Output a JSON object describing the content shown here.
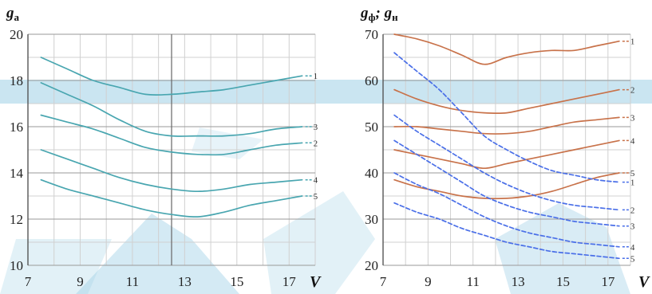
{
  "chart_data": [
    {
      "type": "line",
      "ylabel": {
        "main": "g",
        "sub": "a"
      },
      "xlabel": "V",
      "xlim": [
        7,
        18
      ],
      "ylim": [
        10,
        20
      ],
      "x_ticks": [
        "7",
        "9",
        "11",
        "13",
        "15",
        "17"
      ],
      "y_ticks": [
        "10",
        "12",
        "14",
        "16",
        "18",
        "20"
      ],
      "line_color": "#49a6b0",
      "series": [
        {
          "name": "1",
          "x": [
            7.5,
            8.5,
            9.5,
            10.5,
            11.5,
            12.5,
            13.5,
            14.5,
            15.5,
            16.5,
            17.5
          ],
          "y": [
            19.0,
            18.5,
            18.0,
            17.7,
            17.4,
            17.4,
            17.5,
            17.6,
            17.8,
            18.0,
            18.2
          ]
        },
        {
          "name": "2",
          "x": [
            7.5,
            8.5,
            9.5,
            10.5,
            11.5,
            12.5,
            13.5,
            14.5,
            15.5,
            16.5,
            17.5
          ],
          "y": [
            16.5,
            16.2,
            15.9,
            15.5,
            15.1,
            14.9,
            14.8,
            14.8,
            15.0,
            15.2,
            15.3
          ]
        },
        {
          "name": "3",
          "x": [
            7.5,
            8.5,
            9.5,
            10.5,
            11.5,
            12.5,
            13.5,
            14.5,
            15.5,
            16.5,
            17.5
          ],
          "y": [
            17.9,
            17.4,
            16.9,
            16.3,
            15.8,
            15.6,
            15.6,
            15.6,
            15.7,
            15.9,
            16.0
          ]
        },
        {
          "name": "4",
          "x": [
            7.5,
            8.5,
            9.5,
            10.5,
            11.5,
            12.5,
            13.5,
            14.5,
            15.5,
            16.5,
            17.5
          ],
          "y": [
            15.0,
            14.6,
            14.2,
            13.8,
            13.5,
            13.3,
            13.2,
            13.3,
            13.5,
            13.6,
            13.7
          ]
        },
        {
          "name": "5",
          "x": [
            7.5,
            8.5,
            9.5,
            10.5,
            11.5,
            12.5,
            13.5,
            14.5,
            15.5,
            16.5,
            17.5
          ],
          "y": [
            13.7,
            13.3,
            13.0,
            12.7,
            12.4,
            12.2,
            12.1,
            12.3,
            12.6,
            12.8,
            13.0
          ]
        }
      ]
    },
    {
      "type": "line",
      "ylabel": {
        "part1": "g",
        "sub1": "ф",
        "sep": "; ",
        "part2": "g",
        "sub2": "н"
      },
      "xlabel": "V",
      "xlim": [
        7,
        18
      ],
      "ylim": [
        20,
        70
      ],
      "x_ticks": [
        "7",
        "9",
        "11",
        "13",
        "15",
        "17"
      ],
      "y_ticks": [
        "20",
        "30",
        "40",
        "50",
        "60",
        "70"
      ],
      "solid_color": "#c8724a",
      "dashed_color": "#4a6fe8",
      "solid_series": [
        {
          "name": "1",
          "x": [
            7.5,
            8.5,
            9.5,
            10.5,
            11.5,
            12.5,
            13.5,
            14.5,
            15.5,
            16.5,
            17.5
          ],
          "y": [
            70,
            69,
            67.5,
            65.5,
            63.5,
            65,
            66,
            66.5,
            66.5,
            67.5,
            68.5
          ]
        },
        {
          "name": "2",
          "x": [
            7.5,
            8.5,
            9.5,
            10.5,
            11.5,
            12.5,
            13.5,
            14.5,
            15.5,
            16.5,
            17.5
          ],
          "y": [
            58,
            56,
            54.5,
            53.5,
            53,
            53,
            54,
            55,
            56,
            57,
            58
          ]
        },
        {
          "name": "3",
          "x": [
            7.5,
            8.5,
            9.5,
            10.5,
            11.5,
            12.5,
            13.5,
            14.5,
            15.5,
            16.5,
            17.5
          ],
          "y": [
            50,
            50,
            49.5,
            49,
            48.5,
            48.5,
            49,
            50,
            51,
            51.5,
            52
          ]
        },
        {
          "name": "4",
          "x": [
            7.5,
            8.5,
            9.5,
            10.5,
            11.5,
            12.5,
            13.5,
            14.5,
            15.5,
            16.5,
            17.5
          ],
          "y": [
            45,
            44,
            43,
            42,
            41,
            42,
            43,
            44,
            45,
            46,
            47
          ]
        },
        {
          "name": "5",
          "x": [
            7.5,
            8.5,
            9.5,
            10.5,
            11.5,
            12.5,
            13.5,
            14.5,
            15.5,
            16.5,
            17.5
          ],
          "y": [
            38.5,
            37,
            36,
            35,
            34.5,
            34.5,
            35,
            36,
            37.5,
            39,
            40
          ]
        }
      ],
      "dashed_series": [
        {
          "name": "1",
          "x": [
            7.5,
            8.5,
            9.5,
            10.5,
            11.5,
            12.5,
            13.5,
            14.5,
            15.5,
            16.5,
            17.5
          ],
          "y": [
            66,
            62,
            58,
            53,
            48,
            45,
            42.5,
            40.5,
            39.5,
            38.5,
            38
          ]
        },
        {
          "name": "2",
          "x": [
            7.5,
            8.5,
            9.5,
            10.5,
            11.5,
            12.5,
            13.5,
            14.5,
            15.5,
            16.5,
            17.5
          ],
          "y": [
            52.5,
            49,
            46,
            43,
            40,
            37.5,
            35.5,
            34,
            33,
            32.5,
            32
          ]
        },
        {
          "name": "3",
          "x": [
            7.5,
            8.5,
            9.5,
            10.5,
            11.5,
            12.5,
            13.5,
            14.5,
            15.5,
            16.5,
            17.5
          ],
          "y": [
            47,
            44,
            41,
            38,
            35,
            33,
            31.5,
            30.5,
            29.5,
            29,
            28.5
          ]
        },
        {
          "name": "4",
          "x": [
            7.5,
            8.5,
            9.5,
            10.5,
            11.5,
            12.5,
            13.5,
            14.5,
            15.5,
            16.5,
            17.5
          ],
          "y": [
            40,
            37.5,
            35.5,
            33,
            30.5,
            28.5,
            27,
            26,
            25,
            24.5,
            24
          ]
        },
        {
          "name": "5",
          "x": [
            7.5,
            8.5,
            9.5,
            10.5,
            11.5,
            12.5,
            13.5,
            14.5,
            15.5,
            16.5,
            17.5
          ],
          "y": [
            33.5,
            31.5,
            30,
            28,
            26.5,
            25,
            24,
            23,
            22.5,
            22,
            21.5
          ]
        }
      ]
    }
  ],
  "watermark_color": "#9fd0e6"
}
